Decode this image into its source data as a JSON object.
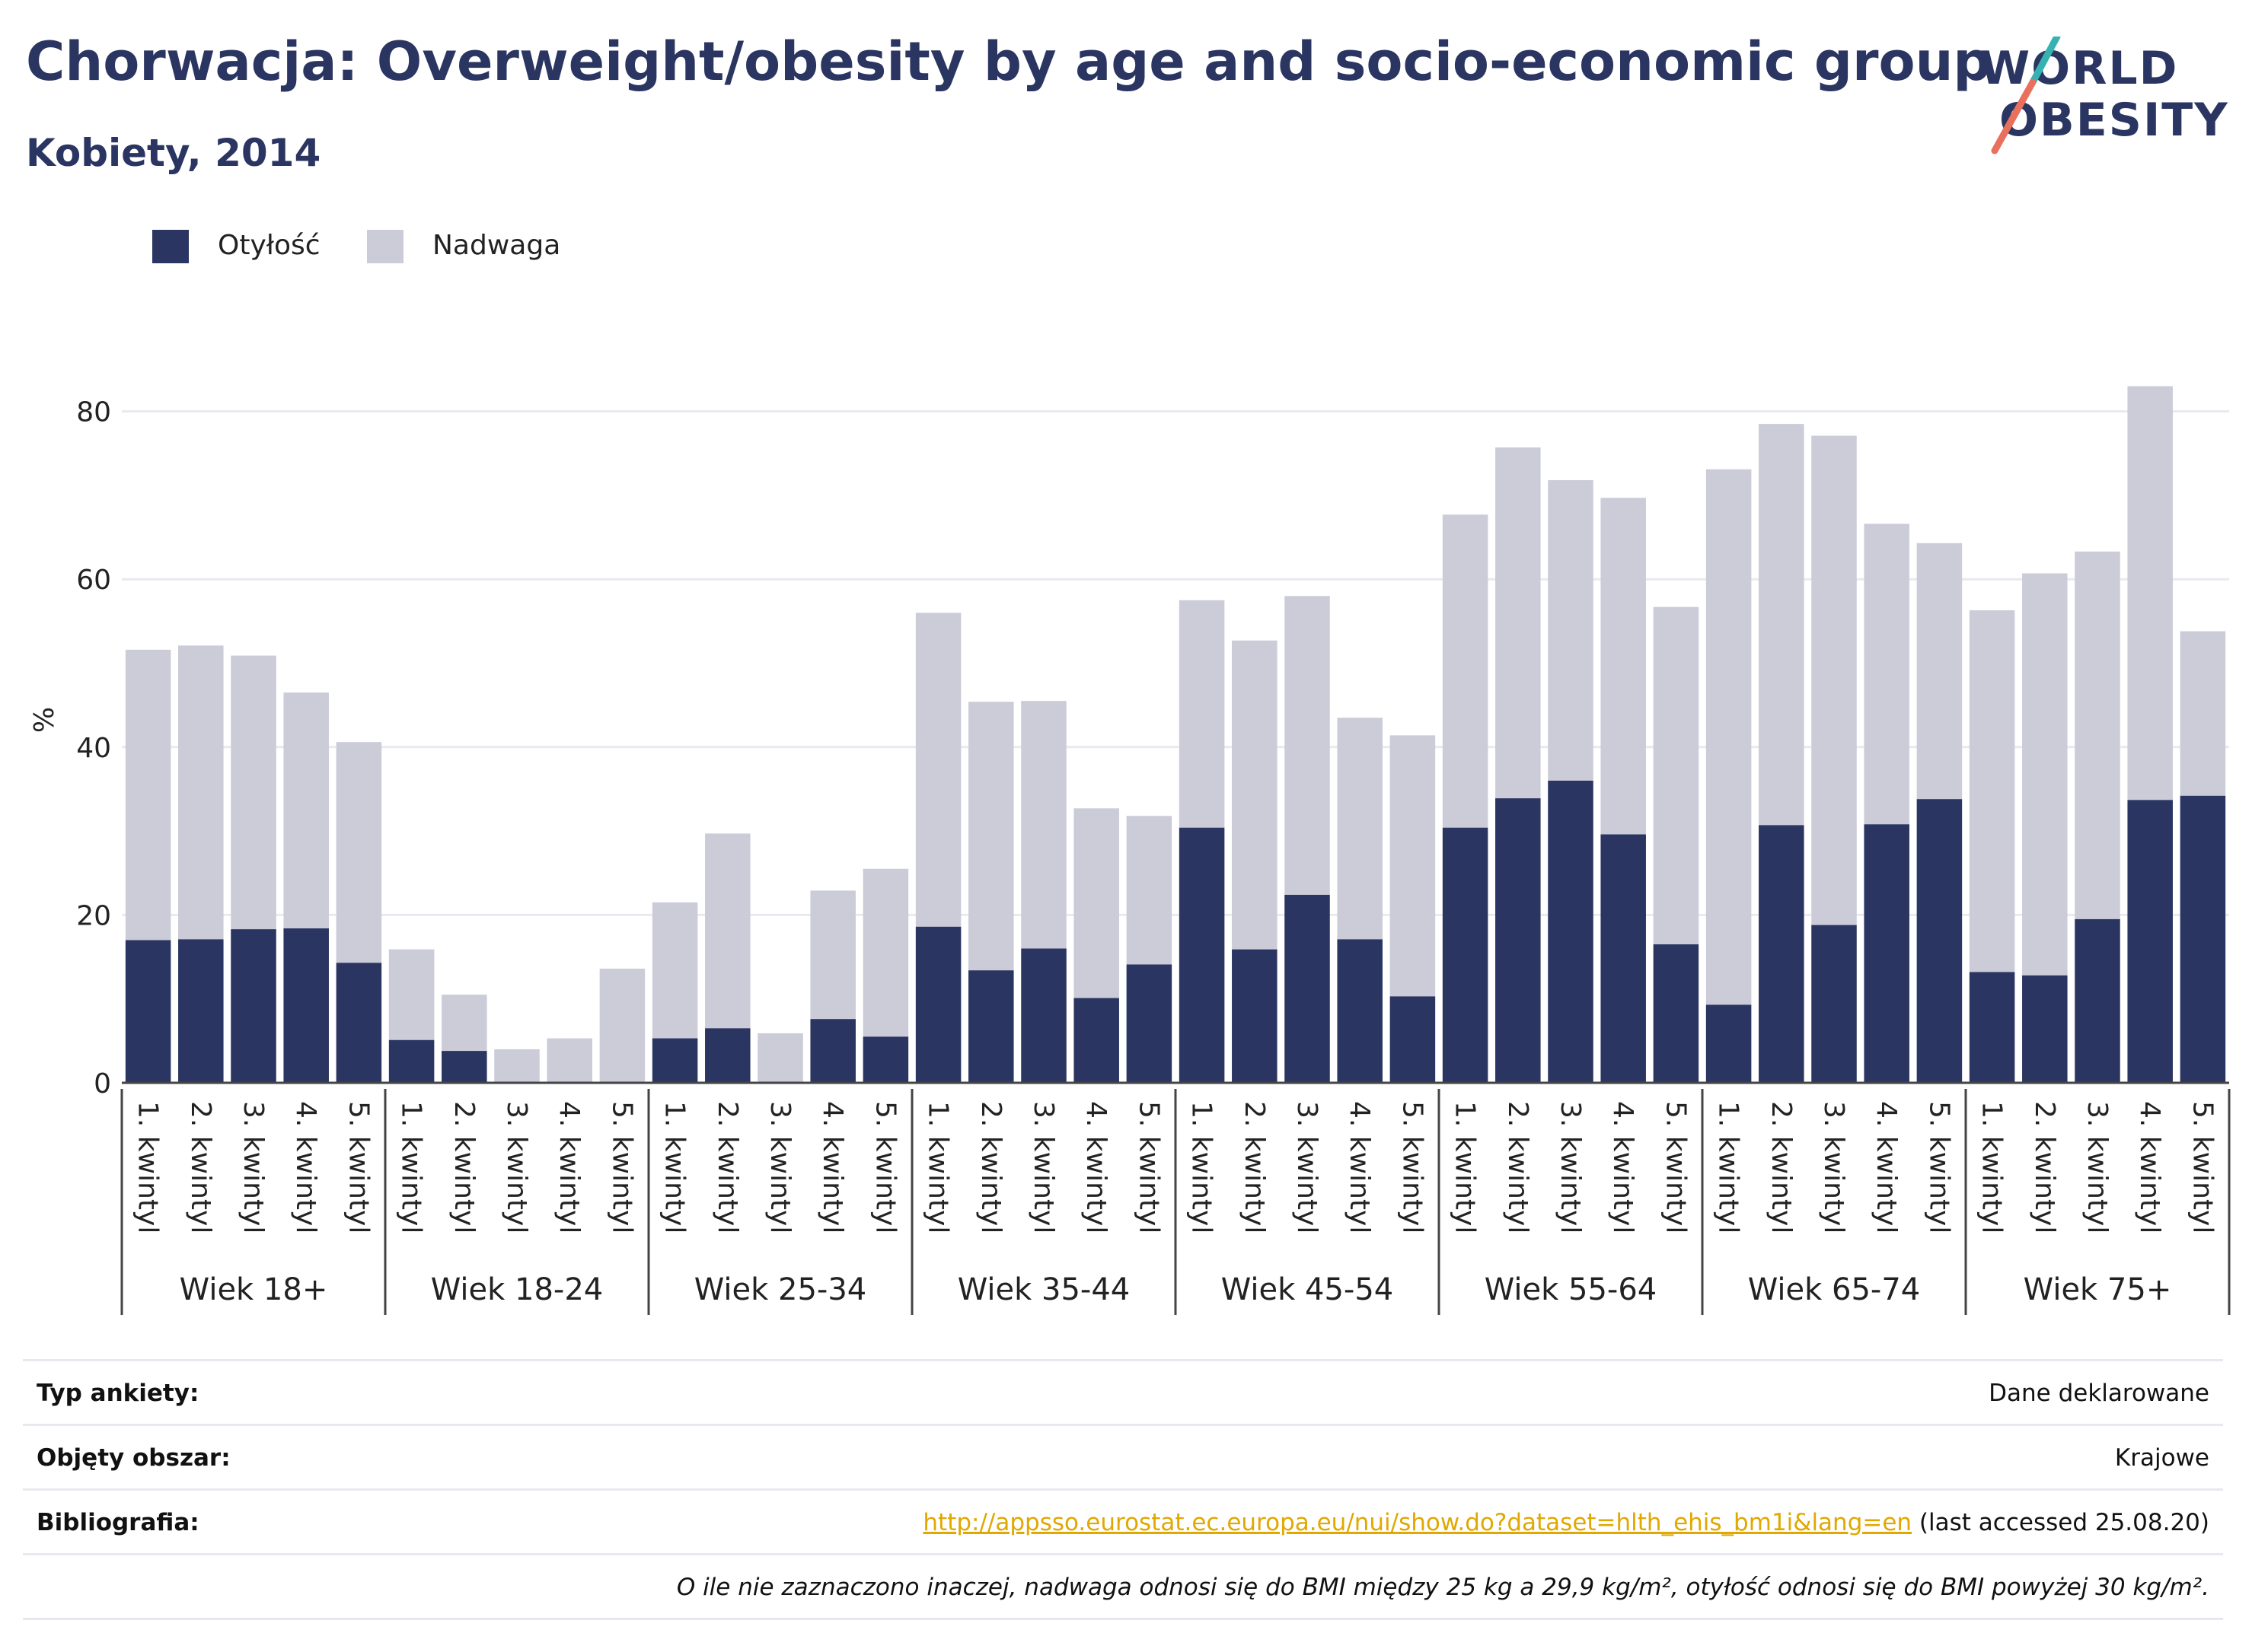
{
  "title": "Chorwacja: Overweight/obesity by age and socio-economic group",
  "subtitle": "Kobiety, 2014",
  "logo": {
    "line1": "WORLD",
    "line2": "OBESITY"
  },
  "colors": {
    "obesity": "#2b3561",
    "overweight": "#cbccd8",
    "accent_teal": "#36b3b0",
    "accent_red": "#e8705d",
    "grid": "#e9e9ef"
  },
  "legend": [
    {
      "label": "Otyłość",
      "color": "#2b3561"
    },
    {
      "label": "Nadwaga",
      "color": "#cbccd8"
    }
  ],
  "chart_data": {
    "type": "bar",
    "stacked": true,
    "ylabel": "%",
    "ylim": [
      0,
      90
    ],
    "yticks": [
      0,
      20,
      40,
      60,
      80
    ],
    "grid": true,
    "legend_position": "top-left",
    "categories": [
      "1. kwintyl",
      "2. kwintyl",
      "3. kwintyl",
      "4. kwintyl",
      "5. kwintyl"
    ],
    "groups": [
      "Wiek 18+",
      "Wiek 18-24",
      "Wiek 25-34",
      "Wiek 35-44",
      "Wiek 45-54",
      "Wiek 55-64",
      "Wiek 65-74",
      "Wiek 75+"
    ],
    "series": [
      {
        "name": "Otyłość",
        "values": [
          [
            17.0,
            17.1,
            18.3,
            18.4,
            14.3
          ],
          [
            5.1,
            3.8,
            0,
            0,
            0
          ],
          [
            5.3,
            6.5,
            0,
            7.6,
            5.5
          ],
          [
            18.6,
            13.4,
            16.0,
            10.1,
            14.1
          ],
          [
            30.4,
            15.9,
            22.4,
            17.1,
            10.3
          ],
          [
            30.4,
            33.9,
            36.0,
            29.6,
            16.5
          ],
          [
            9.3,
            30.7,
            18.8,
            30.8,
            33.8
          ],
          [
            13.2,
            12.8,
            19.5,
            33.7,
            34.2
          ]
        ]
      },
      {
        "name": "Nadwaga",
        "values": [
          [
            34.6,
            35.0,
            32.6,
            28.1,
            26.3
          ],
          [
            10.8,
            6.7,
            4.0,
            5.3,
            13.6
          ],
          [
            16.2,
            23.2,
            5.9,
            15.3,
            20.0
          ],
          [
            37.4,
            32.0,
            29.5,
            22.6,
            17.7
          ],
          [
            27.1,
            36.8,
            35.6,
            26.4,
            31.1
          ],
          [
            37.3,
            41.8,
            35.8,
            40.1,
            40.2
          ],
          [
            63.8,
            47.8,
            58.3,
            35.8,
            30.5
          ],
          [
            43.1,
            47.9,
            43.8,
            49.3,
            19.6
          ]
        ]
      }
    ]
  },
  "info": {
    "rows": [
      {
        "key": "Typ ankiety:",
        "value": "Dane deklarowane"
      },
      {
        "key": "Objęty obszar:",
        "value": "Krajowe"
      },
      {
        "key": "Bibliografia:",
        "link": "http://appsso.eurostat.ec.europa.eu/nui/show.do?dataset=hlth_ehis_bm1i&lang=en",
        "suffix": " (last accessed 25.08.20)"
      }
    ],
    "note": "O ile nie zaznaczono inaczej, nadwaga odnosi się do BMI między 25 kg a 29,9 kg/m², otyłość odnosi się do BMI powyżej 30 kg/m²."
  }
}
